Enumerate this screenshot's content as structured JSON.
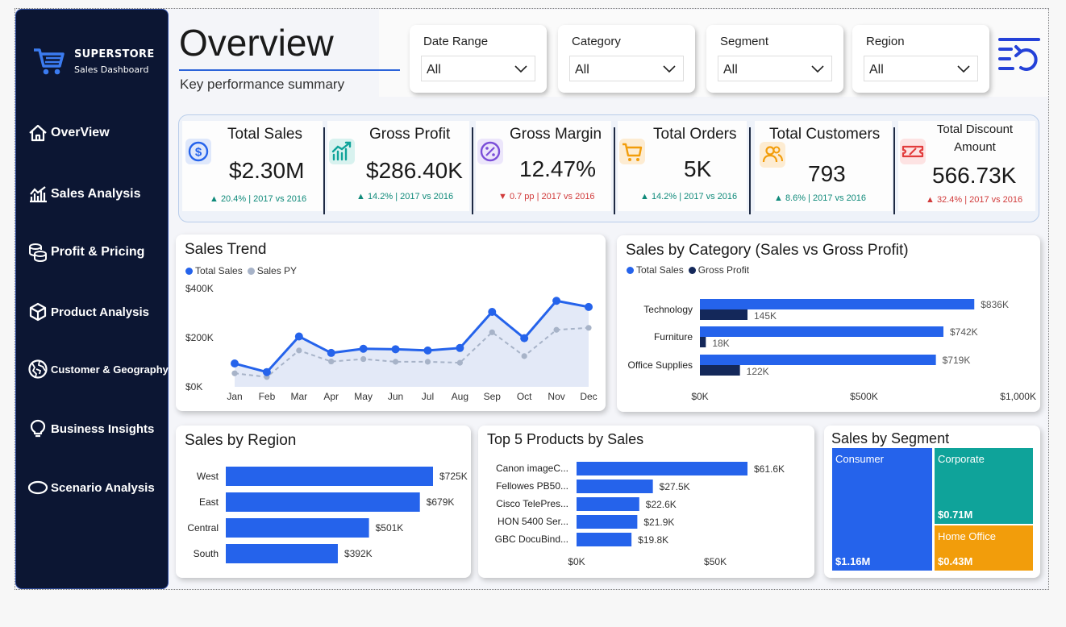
{
  "brand": {
    "name": "SUPERSTORE",
    "tagline": "Sales Dashboard"
  },
  "nav": [
    {
      "label": "OverView",
      "icon": "home-icon"
    },
    {
      "label": "Sales Analysis",
      "icon": "bar-chart-icon"
    },
    {
      "label": "Profit & Pricing",
      "icon": "coins-icon"
    },
    {
      "label": "Product Analysis",
      "icon": "box-icon"
    },
    {
      "label": "Customer & Geography",
      "icon": "globe-icon"
    },
    {
      "label": "Business Insights",
      "icon": "lightbulb-icon"
    },
    {
      "label": "Scenario Analysis",
      "icon": "oval-icon"
    }
  ],
  "header": {
    "title": "Overview",
    "subtitle": "Key performance summary"
  },
  "filters": [
    {
      "label": "Date Range",
      "value": "All"
    },
    {
      "label": "Category",
      "value": "All"
    },
    {
      "label": "Segment",
      "value": "All"
    },
    {
      "label": "Region",
      "value": "All"
    }
  ],
  "kpis": [
    {
      "name": "Total Sales",
      "value": "$2.30M",
      "change": "▲ 20.4% | 2017 vs 2016",
      "direction": "up",
      "icon": "dollar-icon"
    },
    {
      "name": "Gross Profit",
      "value": "$286.40K",
      "change": "▲ 14.2% | 2017 vs 2016",
      "direction": "up",
      "icon": "growth-chart-icon"
    },
    {
      "name": "Gross Margin",
      "value": "12.47%",
      "change": "▼ 0.7 pp | 2017 vs 2016",
      "direction": "down",
      "icon": "percent-icon"
    },
    {
      "name": "Total Orders",
      "value": "5K",
      "change": "▲ 14.2% | 2017 vs 2016",
      "direction": "up",
      "icon": "cart-icon"
    },
    {
      "name": "Total Customers",
      "value": "793",
      "change": "▲ 8.6% | 2017 vs 2016",
      "direction": "up",
      "icon": "users-icon"
    },
    {
      "name": "Total Discount Amount",
      "name_line1": "Total Discount",
      "name_line2": "Amount",
      "value": "566.73K",
      "change": "▲ 32.4% | 2017 vs 2016",
      "direction": "down",
      "icon": "ticket-icon"
    }
  ],
  "colors": {
    "accent": "#2563eb",
    "navy": "#14285a",
    "sidebar": "#0c1633",
    "teal": "#0fa39a",
    "orange": "#f29d0b",
    "up": "#0f8a7a",
    "down": "#d13b3b"
  },
  "chart_data": [
    {
      "type": "line",
      "title": "Sales Trend",
      "categories": [
        "Jan",
        "Feb",
        "Mar",
        "Apr",
        "May",
        "Jun",
        "Jul",
        "Aug",
        "Sep",
        "Oct",
        "Nov",
        "Dec"
      ],
      "series": [
        {
          "name": "Total Sales",
          "values": [
            95,
            60,
            205,
            138,
            155,
            153,
            148,
            158,
            305,
            198,
            350,
            325
          ]
        },
        {
          "name": "Sales PY",
          "values": [
            55,
            40,
            148,
            103,
            113,
            102,
            102,
            98,
            222,
            125,
            232,
            240
          ]
        }
      ],
      "y_ticks": [
        "$0K",
        "$200K",
        "$400K"
      ],
      "ylim": [
        0,
        400
      ],
      "unit": "$K"
    },
    {
      "type": "bar",
      "orientation": "horizontal",
      "title": "Sales by Category (Sales vs Gross Profit)",
      "categories": [
        "Technology",
        "Furniture",
        "Office Supplies"
      ],
      "series": [
        {
          "name": "Total Sales",
          "values": [
            836,
            742,
            719
          ],
          "labels": [
            "$836K",
            "$742K",
            "$719K"
          ]
        },
        {
          "name": "Gross Profit",
          "values": [
            145,
            18,
            122
          ],
          "labels": [
            "145K",
            "18K",
            "122K"
          ]
        }
      ],
      "x_ticks": [
        "$0K",
        "$500K",
        "$1,000K"
      ],
      "xlim": [
        0,
        1000
      ]
    },
    {
      "type": "bar",
      "orientation": "horizontal",
      "title": "Sales by Region",
      "categories": [
        "West",
        "East",
        "Central",
        "South"
      ],
      "values": [
        725,
        679,
        501,
        392
      ],
      "labels": [
        "$725K",
        "$679K",
        "$501K",
        "$392K"
      ],
      "xlim": [
        0,
        725
      ]
    },
    {
      "type": "bar",
      "orientation": "horizontal",
      "title": "Top 5 Products by Sales",
      "categories": [
        "Canon imageC...",
        "Fellowes PB50...",
        "Cisco TelePres...",
        "HON 5400 Ser...",
        "GBC DocuBind..."
      ],
      "values": [
        61.6,
        27.5,
        22.6,
        21.9,
        19.8
      ],
      "labels": [
        "$61.6K",
        "$27.5K",
        "$22.6K",
        "$21.9K",
        "$19.8K"
      ],
      "x_ticks": [
        "$0K",
        "$50K"
      ],
      "xlim": [
        0,
        61.6
      ]
    },
    {
      "type": "treemap",
      "title": "Sales by Segment",
      "categories": [
        "Consumer",
        "Corporate",
        "Home Office"
      ],
      "values": [
        1.16,
        0.71,
        0.43
      ],
      "labels": [
        "$1.16M",
        "$0.71M",
        "$0.43M"
      ]
    }
  ]
}
